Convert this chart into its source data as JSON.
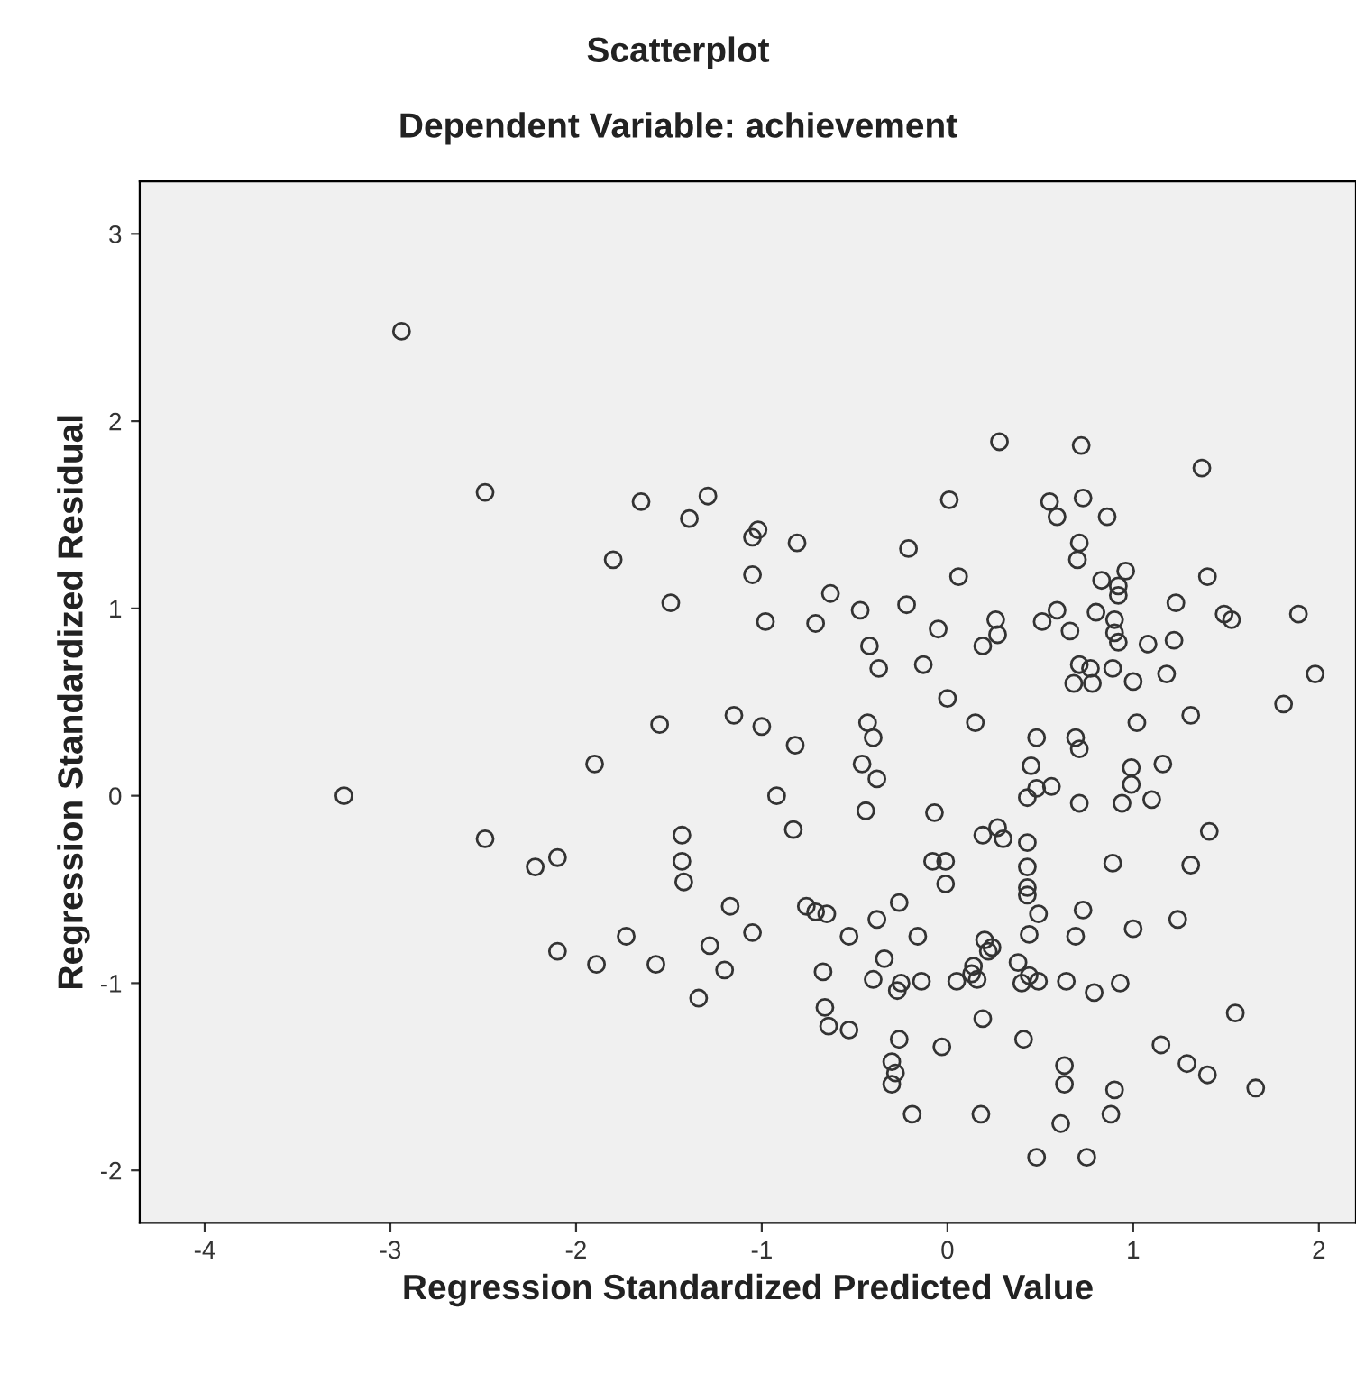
{
  "chart_data": {
    "type": "scatter",
    "title": "Scatterplot",
    "subtitle": "Dependent Variable: achievement",
    "xlabel": "Regression Standardized Predicted Value",
    "ylabel": "Regression Standardized Residual",
    "marker": "circle",
    "grid": false,
    "legend": false,
    "xlim": [
      -4.35,
      2.2
    ],
    "xticks": [
      -4,
      -3,
      -2,
      -1,
      0,
      1,
      2
    ],
    "ylim": [
      -2.28,
      3.28
    ],
    "yticks": [
      -2,
      -1,
      0,
      1,
      2,
      3
    ],
    "series": [
      {
        "color": "#333333",
        "x": [
          -2.94,
          -2.49,
          -3.25,
          -2.49,
          -2.22,
          -2.1,
          -1.9,
          -2.1,
          -1.89,
          -1.73,
          -1.57,
          -1.8,
          -1.65,
          -1.39,
          -1.29,
          -1.49,
          -1.55,
          -1.43,
          -1.42,
          -1.43,
          -1.34,
          -1.28,
          -1.2,
          -1.17,
          -1.05,
          -1.15,
          -1.0,
          -1.05,
          -1.02,
          -1.05,
          -0.98,
          -0.81,
          -0.71,
          -0.63,
          -0.82,
          -0.92,
          -0.83,
          -0.76,
          -0.71,
          -0.65,
          -0.67,
          -0.66,
          -0.64,
          -0.53,
          -0.53,
          -0.46,
          -0.47,
          -0.43,
          -0.4,
          -0.42,
          -0.37,
          -0.38,
          -0.44,
          -0.38,
          -0.4,
          -0.34,
          -0.26,
          -0.21,
          -0.22,
          -0.26,
          -0.3,
          -0.28,
          -0.3,
          -0.19,
          -0.27,
          -0.25,
          -0.14,
          -0.16,
          -0.13,
          -0.05,
          -0.07,
          -0.08,
          -0.01,
          -0.01,
          -0.03,
          0.05,
          0.01,
          0.06,
          0.0,
          0.15,
          0.19,
          0.14,
          0.13,
          0.16,
          0.2,
          0.22,
          0.19,
          0.18,
          0.19,
          0.27,
          0.3,
          0.24,
          0.28,
          0.26,
          0.27,
          0.38,
          0.4,
          0.41,
          0.45,
          0.48,
          0.43,
          0.43,
          0.48,
          0.43,
          0.43,
          0.43,
          0.44,
          0.44,
          0.49,
          0.49,
          0.51,
          0.55,
          0.59,
          0.56,
          0.59,
          0.48,
          0.63,
          0.61,
          0.63,
          0.64,
          0.69,
          0.66,
          0.7,
          0.71,
          0.73,
          0.72,
          0.68,
          0.71,
          0.78,
          0.77,
          0.71,
          0.69,
          0.71,
          0.73,
          0.79,
          0.8,
          0.83,
          0.86,
          0.92,
          0.96,
          0.9,
          0.9,
          0.92,
          0.89,
          0.92,
          0.75,
          0.88,
          0.9,
          0.93,
          0.94,
          0.99,
          0.99,
          1.0,
          1.02,
          1.0,
          0.89,
          1.1,
          1.08,
          1.23,
          1.22,
          1.18,
          1.16,
          1.24,
          1.15,
          1.29,
          1.4,
          1.31,
          1.31,
          1.41,
          1.4,
          1.49,
          1.53,
          1.37,
          1.55,
          1.66,
          1.81,
          1.89,
          1.98
        ],
        "values": [
          2.48,
          1.62,
          0.0,
          -0.23,
          -0.38,
          -0.33,
          0.17,
          -0.83,
          -0.9,
          -0.75,
          -0.9,
          1.26,
          1.57,
          1.48,
          1.6,
          1.03,
          0.38,
          -0.21,
          -0.46,
          -0.35,
          -1.08,
          -0.8,
          -0.93,
          -0.59,
          -0.73,
          0.43,
          0.37,
          1.38,
          1.42,
          1.18,
          0.93,
          1.35,
          0.92,
          1.08,
          0.27,
          0.0,
          -0.18,
          -0.59,
          -0.62,
          -0.63,
          -0.94,
          -1.13,
          -1.23,
          -1.25,
          -0.75,
          0.17,
          0.99,
          0.39,
          0.31,
          0.8,
          0.68,
          0.09,
          -0.08,
          -0.66,
          -0.98,
          -0.87,
          -0.57,
          1.32,
          1.02,
          -1.3,
          -1.42,
          -1.48,
          -1.54,
          -1.7,
          -1.04,
          -1.0,
          -0.99,
          -0.75,
          0.7,
          0.89,
          -0.09,
          -0.35,
          -0.47,
          -0.35,
          -1.34,
          -0.99,
          1.58,
          1.17,
          0.52,
          0.39,
          0.8,
          -0.91,
          -0.95,
          -0.98,
          -0.77,
          -0.83,
          -1.19,
          -1.7,
          -0.21,
          -0.17,
          -0.23,
          -0.81,
          1.89,
          0.94,
          0.86,
          -0.89,
          -1.0,
          -1.3,
          0.16,
          0.31,
          -0.01,
          -0.25,
          0.04,
          -0.38,
          -0.49,
          -0.53,
          -0.74,
          -0.96,
          -0.99,
          -0.63,
          0.93,
          1.57,
          1.49,
          0.05,
          0.99,
          -1.93,
          -1.54,
          -1.75,
          -1.44,
          -0.99,
          -0.75,
          0.88,
          1.26,
          1.35,
          1.59,
          1.87,
          0.6,
          0.7,
          0.6,
          0.68,
          0.25,
          0.31,
          -0.04,
          -0.61,
          -1.05,
          0.98,
          1.15,
          1.49,
          1.12,
          1.2,
          0.87,
          0.94,
          0.82,
          0.68,
          1.07,
          -1.93,
          -1.7,
          -1.57,
          -1.0,
          -0.04,
          0.06,
          0.15,
          0.61,
          0.39,
          -0.71,
          -0.36,
          -0.02,
          0.81,
          1.03,
          0.83,
          0.65,
          0.17,
          -0.66,
          -1.33,
          -1.43,
          -1.49,
          -0.37,
          0.43,
          -0.19,
          1.17,
          0.97,
          0.94,
          1.75,
          -1.16,
          -1.56,
          0.49,
          0.97,
          0.65
        ]
      }
    ]
  }
}
